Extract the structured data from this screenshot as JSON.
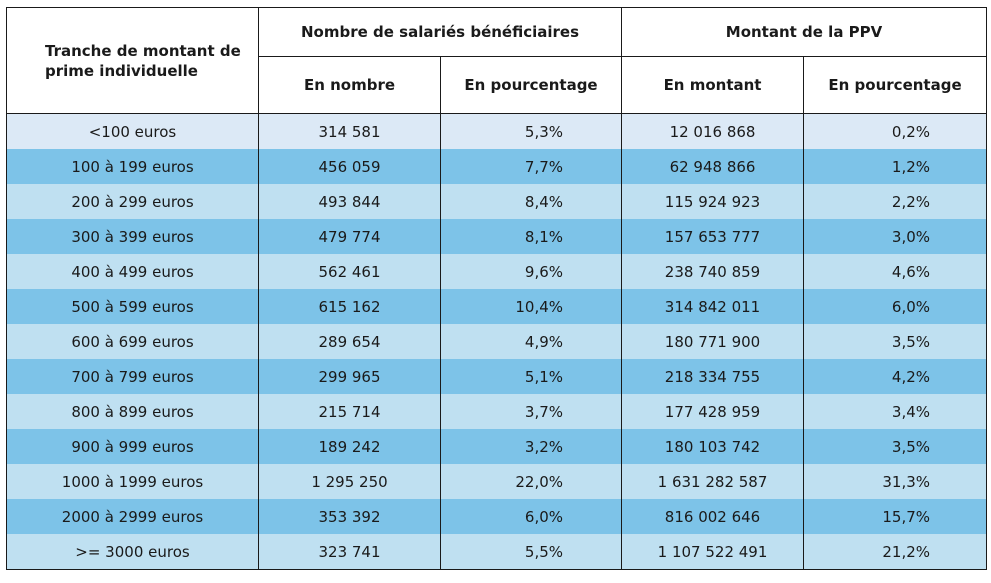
{
  "table": {
    "header": {
      "row_label": "Tranche de montant de prime individuelle",
      "group1": "Nombre de salariés bénéficiaires",
      "group2": "Montant de la PPV",
      "sub": [
        "En nombre",
        "En pourcentage",
        "En montant",
        "En pourcentage"
      ]
    },
    "rows": [
      {
        "tranche": "<100 euros",
        "nombre": "314 581",
        "pct_nombre": "5,3%",
        "montant": "12 016 868",
        "pct_montant": "0,2%"
      },
      {
        "tranche": "100 à 199 euros",
        "nombre": "456 059",
        "pct_nombre": "7,7%",
        "montant": "62 948 866",
        "pct_montant": "1,2%"
      },
      {
        "tranche": "200 à 299 euros",
        "nombre": "493 844",
        "pct_nombre": "8,4%",
        "montant": "115 924 923",
        "pct_montant": "2,2%"
      },
      {
        "tranche": "300 à 399 euros",
        "nombre": "479 774",
        "pct_nombre": "8,1%",
        "montant": "157 653 777",
        "pct_montant": "3,0%"
      },
      {
        "tranche": "400 à 499 euros",
        "nombre": "562 461",
        "pct_nombre": "9,6%",
        "montant": "238 740 859",
        "pct_montant": "4,6%"
      },
      {
        "tranche": "500 à 599 euros",
        "nombre": "615 162",
        "pct_nombre": "10,4%",
        "montant": "314 842 011",
        "pct_montant": "6,0%"
      },
      {
        "tranche": "600 à 699 euros",
        "nombre": "289 654",
        "pct_nombre": "4,9%",
        "montant": "180 771 900",
        "pct_montant": "3,5%"
      },
      {
        "tranche": "700 à 799 euros",
        "nombre": "299 965",
        "pct_nombre": "5,1%",
        "montant": "218 334 755",
        "pct_montant": "4,2%"
      },
      {
        "tranche": "800 à 899 euros",
        "nombre": "215 714",
        "pct_nombre": "3,7%",
        "montant": "177 428 959",
        "pct_montant": "3,4%"
      },
      {
        "tranche": "900 à 999 euros",
        "nombre": "189 242",
        "pct_nombre": "3,2%",
        "montant": "180 103 742",
        "pct_montant": "3,5%"
      },
      {
        "tranche": "1000 à 1999 euros",
        "nombre": "1 295 250",
        "pct_nombre": "22,0%",
        "montant": "1 631 282 587",
        "pct_montant": "31,3%"
      },
      {
        "tranche": "2000 à 2999 euros",
        "nombre": "353 392",
        "pct_nombre": "6,0%",
        "montant": "816 002 646",
        "pct_montant": "15,7%"
      },
      {
        "tranche": ">= 3000 euros",
        "nombre": "323 741",
        "pct_nombre": "5,5%",
        "montant": "1 107 522 491",
        "pct_montant": "21,2%"
      }
    ]
  }
}
